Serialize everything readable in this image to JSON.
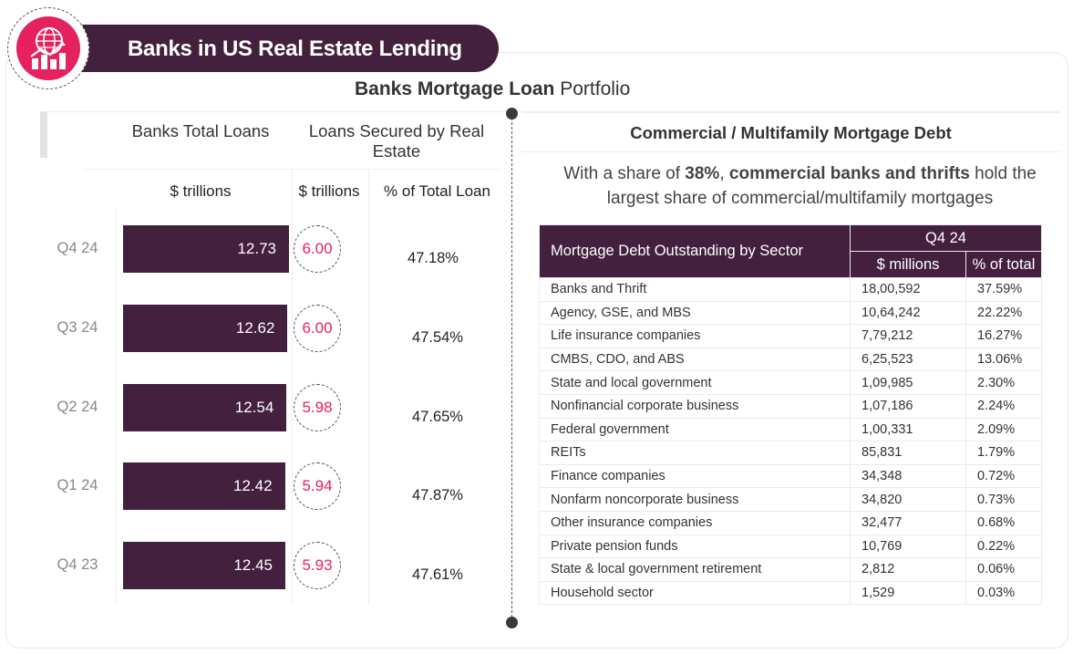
{
  "header": {
    "title": "Banks in US Real Estate Lending",
    "subtitle_bold": "Banks Mortgage Loan",
    "subtitle_light": "Portfolio"
  },
  "left": {
    "col1_header": "Banks Total Loans",
    "col2_header": "Loans Secured by Real Estate",
    "unit1": "$ trillions",
    "unit2": "$ trillions",
    "unit3": "% of Total Loan"
  },
  "chart_data": {
    "type": "bar",
    "categories": [
      "Q4 24",
      "Q3 24",
      "Q2 24",
      "Q1 24",
      "Q4 23"
    ],
    "series": [
      {
        "name": "Banks Total Loans",
        "values": [
          12.73,
          12.62,
          12.54,
          12.42,
          12.45
        ]
      },
      {
        "name": "Loans Secured by Real Estate",
        "values": [
          6.0,
          6.0,
          5.98,
          5.94,
          5.93
        ]
      },
      {
        "name": "% of Total Loan",
        "values": [
          47.18,
          47.54,
          47.65,
          47.87,
          47.61
        ]
      }
    ],
    "value_labels": [
      "12.73",
      "12.62",
      "12.54",
      "12.42",
      "12.45"
    ],
    "secured_labels": [
      "6.00",
      "6.00",
      "5.98",
      "5.94",
      "5.93"
    ],
    "pct_labels": [
      "47.18%",
      "47.54%",
      "47.65%",
      "47.87%",
      "47.61%"
    ],
    "orientation": "horizontal"
  },
  "right": {
    "title": "Commercial / Multifamily Mortgage Debt",
    "desc_pre": "With a share of ",
    "desc_bold1": "38%",
    "desc_mid": ", ",
    "desc_bold2": "commercial banks and thrifts",
    "desc_post": " hold the largest share of commercial/multifamily mortgages",
    "table": {
      "header_sector": "Mortgage Debt Outstanding by Sector",
      "header_period": "Q4 24",
      "header_millions": "$ millions",
      "header_pct": "% of total",
      "rows": [
        {
          "sector": "Banks and Thrift",
          "millions": "18,00,592",
          "pct": "37.59%"
        },
        {
          "sector": "Agency, GSE, and MBS",
          "millions": "10,64,242",
          "pct": "22.22%"
        },
        {
          "sector": "Life insurance companies",
          "millions": "7,79,212",
          "pct": "16.27%"
        },
        {
          "sector": "CMBS, CDO, and ABS",
          "millions": "6,25,523",
          "pct": "13.06%"
        },
        {
          "sector": "State and local government",
          "millions": "1,09,985",
          "pct": "2.30%"
        },
        {
          "sector": "Nonfinancial corporate business",
          "millions": "1,07,186",
          "pct": "2.24%"
        },
        {
          "sector": "Federal government",
          "millions": "1,00,331",
          "pct": "2.09%"
        },
        {
          "sector": "REITs",
          "millions": "85,831",
          "pct": "1.79%"
        },
        {
          "sector": "Finance companies",
          "millions": "34,348",
          "pct": "0.72%"
        },
        {
          "sector": "Nonfarm noncorporate business",
          "millions": "34,820",
          "pct": "0.73%"
        },
        {
          "sector": "Other insurance companies",
          "millions": "32,477",
          "pct": "0.68%"
        },
        {
          "sector": "Private pension funds",
          "millions": "10,769",
          "pct": "0.22%"
        },
        {
          "sector": "State & local government retirement",
          "millions": "2,812",
          "pct": "0.06%"
        },
        {
          "sector": "Household sector",
          "millions": "1,529",
          "pct": "0.03%"
        }
      ]
    }
  },
  "colors": {
    "primary": "#44203f",
    "accent": "#e5215e"
  },
  "icons": {
    "logo": "chart-globe-icon"
  }
}
